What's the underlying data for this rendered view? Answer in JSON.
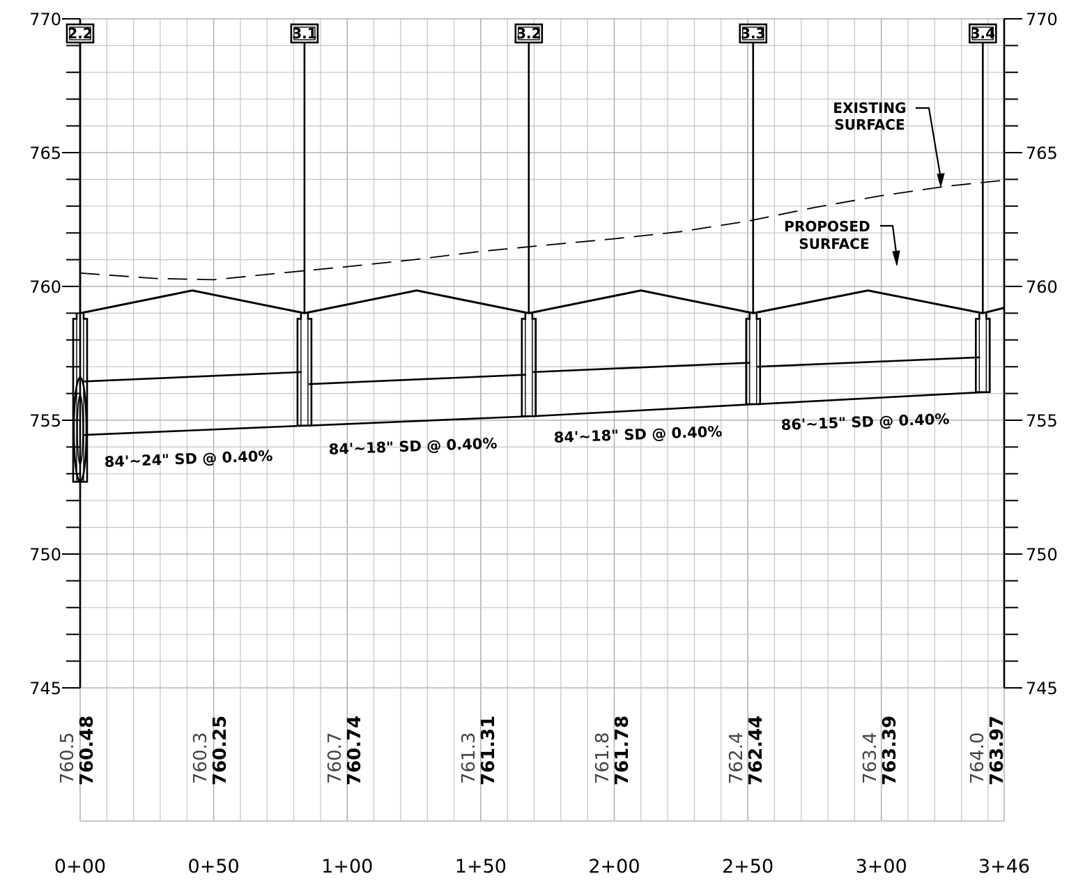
{
  "elevation_axis": {
    "left_labels": [
      "770",
      "765",
      "760",
      "755",
      "750",
      "745"
    ],
    "right_labels": [
      "770",
      "765",
      "760",
      "755",
      "750",
      "745"
    ],
    "range": [
      745,
      770
    ]
  },
  "stations": {
    "labels": [
      "0+00",
      "0+50",
      "1+00",
      "1+50",
      "2+00",
      "2+50",
      "3+00",
      "3+46"
    ],
    "range_ft": [
      0,
      346
    ]
  },
  "structures": [
    {
      "id": "2.2",
      "station": 0
    },
    {
      "id": "3.1",
      "station": 84
    },
    {
      "id": "3.2",
      "station": 168
    },
    {
      "id": "3.3",
      "station": 252
    },
    {
      "id": "3.4",
      "station": 338
    }
  ],
  "pipes": [
    {
      "label": "84'~24\" SD @ 0.40%"
    },
    {
      "label": "84'~18\" SD @ 0.40%"
    },
    {
      "label": "84'~18\" SD @ 0.40%"
    },
    {
      "label": "86'~15\" SD @ 0.40%"
    }
  ],
  "annotations": {
    "existing_line1": "EXISTING",
    "existing_line2": "SURFACE",
    "proposed_line1": "PROPOSED",
    "proposed_line2": "SURFACE"
  },
  "elevation_table": [
    {
      "existing": "760.5",
      "proposed": "760.48"
    },
    {
      "existing": "760.3",
      "proposed": "760.25"
    },
    {
      "existing": "760.7",
      "proposed": "760.74"
    },
    {
      "existing": "761.3",
      "proposed": "761.31"
    },
    {
      "existing": "761.8",
      "proposed": "761.78"
    },
    {
      "existing": "762.4",
      "proposed": "762.44"
    },
    {
      "existing": "763.4",
      "proposed": "763.39"
    },
    {
      "existing": "764.0",
      "proposed": "763.97"
    }
  ]
}
